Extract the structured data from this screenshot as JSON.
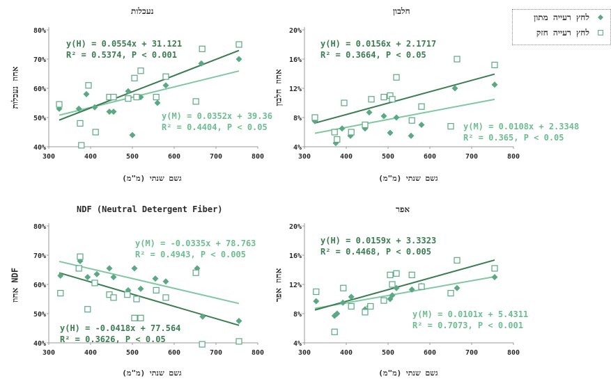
{
  "legend": {
    "items": [
      {
        "label": "לחץ רעייה מתון",
        "symbol": "diamond",
        "color": "#5aa884"
      },
      {
        "label": "לחץ רעייה חזק",
        "symbol": "square",
        "color": "#5aa884"
      }
    ]
  },
  "colors": {
    "H_line": "#3a7d52",
    "M_line": "#7ec8a2",
    "H_text": "#3a7d52",
    "M_text": "#6dbd93",
    "marker": "#5aa884"
  },
  "chart_data": [
    {
      "type": "scatter",
      "title": "נעכלות",
      "xlabel": "גשם שנתי (מ\"מ)",
      "ylabel": "אחוז נעכלות",
      "xlim": [
        300,
        800
      ],
      "ylim": [
        40,
        80
      ],
      "xticks": [
        "300",
        "400",
        "500",
        "600",
        "700",
        "800"
      ],
      "yticks": [
        "40%",
        "50%",
        "60%",
        "70%",
        "80%"
      ],
      "eq_H": [
        "y(H) = 0.0554x + 31.121",
        "R² = 0.5374, P < 0.001"
      ],
      "eq_M": [
        "y(M) = 0.0352x + 39.36",
        "R² = 0.4404, P < 0.05"
      ],
      "lines": {
        "H": {
          "slope": 0.0554,
          "intercept": 31.121
        },
        "M": {
          "slope": 0.0352,
          "intercept": 39.36
        }
      },
      "series": [
        {
          "name": "לחץ רעייה מתון",
          "symbol": "diamond",
          "x": [
            325,
            372,
            390,
            410,
            445,
            455,
            490,
            500,
            520,
            560,
            580,
            665,
            755
          ],
          "y": [
            53,
            53,
            58,
            53.5,
            52,
            52,
            59,
            44,
            57,
            55,
            61,
            68.5,
            70
          ]
        },
        {
          "name": "לחץ רעייה חזק",
          "symbol": "square",
          "x": [
            325,
            375,
            378,
            395,
            412,
            445,
            455,
            490,
            505,
            510,
            520,
            557,
            580,
            652,
            667,
            755
          ],
          "y": [
            54.5,
            48,
            40.5,
            61,
            45,
            57,
            57,
            56.5,
            63.5,
            57,
            66,
            57,
            64,
            55.5,
            73.5,
            75
          ]
        }
      ]
    },
    {
      "type": "scatter",
      "title": "חלבון",
      "xlabel": "גשם שנתי (מ\"מ)",
      "ylabel": "אחוז חלבון",
      "xlim": [
        300,
        800
      ],
      "ylim": [
        4,
        20
      ],
      "xticks": [
        "300",
        "400",
        "500",
        "600",
        "700",
        "800"
      ],
      "yticks": [
        "4%",
        "8%",
        "12%",
        "16%",
        "20%"
      ],
      "eq_H": [
        "y(H) = 0.0156x + 2.1717",
        "R² = 0.3664, P < 0.05"
      ],
      "eq_M": [
        "y(M) = 0.0108x + 2.3348",
        "R² = 0.365, P < 0.05"
      ],
      "lines": {
        "H": {
          "slope": 0.0156,
          "intercept": 2.1717
        },
        "M": {
          "slope": 0.0108,
          "intercept": 2.3348
        }
      },
      "series": [
        {
          "name": "לחץ רעייה מתון",
          "symbol": "diamond",
          "x": [
            325,
            375,
            390,
            410,
            445,
            455,
            490,
            505,
            520,
            555,
            580,
            660,
            755
          ],
          "y": [
            7.5,
            4.5,
            6.5,
            5.5,
            6.5,
            8.7,
            8.2,
            5.9,
            8,
            5.5,
            7,
            12,
            12.5
          ]
        },
        {
          "name": "לחץ רעייה חזק",
          "symbol": "square",
          "x": [
            325,
            372,
            378,
            395,
            412,
            445,
            460,
            490,
            505,
            510,
            520,
            557,
            580,
            650,
            665,
            755
          ],
          "y": [
            8,
            6,
            5,
            10,
            6,
            7,
            10.5,
            10.8,
            11,
            10.5,
            13.5,
            7.6,
            9.5,
            6.8,
            16,
            15.2
          ]
        }
      ]
    },
    {
      "type": "scatter",
      "title": "NDF (Neutral Detergent Fiber)",
      "xlabel": "גשם שנתי (מ\"מ)",
      "ylabel": "אחוז NDF",
      "xlim": [
        300,
        800
      ],
      "ylim": [
        40,
        80
      ],
      "xticks": [
        "300",
        "400",
        "500",
        "600",
        "700",
        "800"
      ],
      "yticks": [
        "40%",
        "50%",
        "60%",
        "70%",
        "80%"
      ],
      "eq_H": [
        "y(H) = -0.0418x + 77.564",
        "R² = 0.3626, P < 0.05"
      ],
      "eq_M": [
        "y(M) = -0.0335x + 78.763",
        "R² = 0.4943, P < 0.005"
      ],
      "lines": {
        "H": {
          "slope": -0.0418,
          "intercept": 77.564
        },
        "M": {
          "slope": -0.0335,
          "intercept": 78.763
        }
      },
      "series": [
        {
          "name": "לחץ רעייה מתון",
          "symbol": "diamond",
          "x": [
            328,
            375,
            393,
            415,
            445,
            455,
            490,
            505,
            520,
            555,
            580,
            655,
            668,
            755
          ],
          "y": [
            63,
            68,
            62.5,
            63.5,
            65.5,
            62.5,
            58,
            65.5,
            58.5,
            62,
            61,
            65.5,
            49,
            47.5
          ]
        },
        {
          "name": "לחץ רעייה חזק",
          "symbol": "square",
          "x": [
            328,
            372,
            375,
            393,
            410,
            445,
            455,
            488,
            505,
            510,
            520,
            557,
            580,
            652,
            667,
            755
          ],
          "y": [
            57,
            65.5,
            69.5,
            51.5,
            60.5,
            56.5,
            55.5,
            56.5,
            48.5,
            55,
            48.5,
            58,
            55.5,
            64,
            39.5,
            40.5
          ]
        }
      ]
    },
    {
      "type": "scatter",
      "title": "אפר",
      "xlabel": "גשם שנתי (מ\"מ)",
      "ylabel": "אחוז אפר",
      "xlim": [
        300,
        800
      ],
      "ylim": [
        4,
        20
      ],
      "xticks": [
        "300",
        "400",
        "500",
        "600",
        "700",
        "800"
      ],
      "yticks": [
        "4%",
        "8%",
        "12%",
        "16%",
        "20%"
      ],
      "eq_H": [
        "y(H) = 0.0159x + 3.3323",
        "R² = 0.4468, P < 0.005"
      ],
      "eq_M": [
        "y(M) = 0.0101x + 5.4311",
        "R² = 0.7073, P < 0.001"
      ],
      "lines": {
        "H": {
          "slope": 0.0159,
          "intercept": 3.3323
        },
        "M": {
          "slope": 0.0101,
          "intercept": 5.4311
        }
      },
      "series": [
        {
          "name": "לחץ רעייה מתון",
          "symbol": "diamond",
          "x": [
            328,
            372,
            378,
            392,
            412,
            445,
            455,
            505,
            510,
            520,
            557,
            580,
            665,
            755
          ],
          "y": [
            9.7,
            7.7,
            8,
            9.5,
            10.3,
            8.6,
            9,
            10,
            10.5,
            11.5,
            11.3,
            11.8,
            11.5,
            13
          ]
        },
        {
          "name": "לחץ רעייה חזק",
          "symbol": "square",
          "x": [
            328,
            372,
            393,
            412,
            445,
            458,
            490,
            505,
            510,
            520,
            557,
            580,
            650,
            665,
            755
          ],
          "y": [
            11,
            5.5,
            11.5,
            9,
            8.2,
            9,
            9.8,
            13.3,
            12,
            13.5,
            13.3,
            11.7,
            10.8,
            15.3,
            14.2
          ]
        }
      ]
    }
  ]
}
